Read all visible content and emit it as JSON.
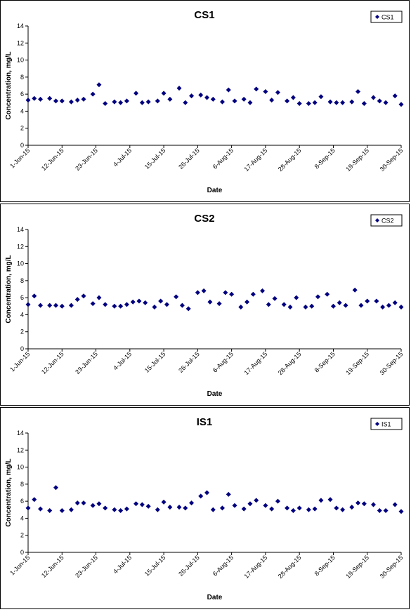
{
  "chart_data": [
    {
      "type": "scatter",
      "title": "CS1",
      "xlabel": "Date",
      "ylabel": "Concentration, mg/L",
      "ylim": [
        0,
        14
      ],
      "yticks": [
        0,
        2,
        4,
        6,
        8,
        10,
        12,
        14
      ],
      "xlim": [
        "2015-06-01",
        "2015-09-30"
      ],
      "xticks": [
        "1-Jun-15",
        "12-Jun-15",
        "23-Jun-15",
        "4-Jul-15",
        "15-Jul-15",
        "26-Jul-15",
        "6-Aug-15",
        "17-Aug-15",
        "28-Aug-15",
        "8-Sep-15",
        "19-Sep-15",
        "30-Sep-15"
      ],
      "grid": false,
      "legend": "top-right",
      "color": "#00007f",
      "series": [
        {
          "name": "CS1",
          "x": [
            "2015-06-01",
            "2015-06-03",
            "2015-06-05",
            "2015-06-08",
            "2015-06-10",
            "2015-06-12",
            "2015-06-15",
            "2015-06-17",
            "2015-06-19",
            "2015-06-22",
            "2015-06-24",
            "2015-06-26",
            "2015-06-29",
            "2015-07-01",
            "2015-07-03",
            "2015-07-06",
            "2015-07-08",
            "2015-07-10",
            "2015-07-13",
            "2015-07-15",
            "2015-07-17",
            "2015-07-20",
            "2015-07-22",
            "2015-07-24",
            "2015-07-27",
            "2015-07-29",
            "2015-07-31",
            "2015-08-03",
            "2015-08-05",
            "2015-08-07",
            "2015-08-10",
            "2015-08-12",
            "2015-08-14",
            "2015-08-17",
            "2015-08-19",
            "2015-08-21",
            "2015-08-24",
            "2015-08-26",
            "2015-08-28",
            "2015-08-31",
            "2015-09-02",
            "2015-09-04",
            "2015-09-07",
            "2015-09-09",
            "2015-09-11",
            "2015-09-14",
            "2015-09-16",
            "2015-09-18",
            "2015-09-21",
            "2015-09-23",
            "2015-09-25",
            "2015-09-28",
            "2015-09-30"
          ],
          "y": [
            5.3,
            5.5,
            5.4,
            5.5,
            5.2,
            5.2,
            5.1,
            5.3,
            5.4,
            6.0,
            7.1,
            4.9,
            5.1,
            5.0,
            5.2,
            6.1,
            5.0,
            5.1,
            5.2,
            6.1,
            5.4,
            6.7,
            5.0,
            5.8,
            5.9,
            5.6,
            5.4,
            5.1,
            6.5,
            5.2,
            5.4,
            5.0,
            6.6,
            6.3,
            5.3,
            6.2,
            5.2,
            5.6,
            4.9,
            4.9,
            5.0,
            5.7,
            5.1,
            5.0,
            5.0,
            5.1,
            6.3,
            4.9,
            5.6,
            5.2,
            5.0,
            5.8,
            4.8
          ]
        }
      ]
    },
    {
      "type": "scatter",
      "title": "CS2",
      "xlabel": "Date",
      "ylabel": "Concentration, mg/L",
      "ylim": [
        0,
        14
      ],
      "yticks": [
        0,
        2,
        4,
        6,
        8,
        10,
        12,
        14
      ],
      "xlim": [
        "2015-06-01",
        "2015-09-30"
      ],
      "xticks": [
        "1-Jun-15",
        "12-Jun-15",
        "23-Jun-15",
        "4-Jul-15",
        "15-Jul-15",
        "26-Jul-15",
        "6-Aug-15",
        "17-Aug-15",
        "28-Aug-15",
        "8-Sep-15",
        "19-Sep-15",
        "30-Sep-15"
      ],
      "grid": false,
      "legend": "top-right",
      "color": "#00007f",
      "series": [
        {
          "name": "CS2",
          "x": [
            "2015-06-01",
            "2015-06-03",
            "2015-06-05",
            "2015-06-08",
            "2015-06-10",
            "2015-06-12",
            "2015-06-15",
            "2015-06-17",
            "2015-06-19",
            "2015-06-22",
            "2015-06-24",
            "2015-06-26",
            "2015-06-29",
            "2015-07-01",
            "2015-07-03",
            "2015-07-05",
            "2015-07-07",
            "2015-07-09",
            "2015-07-12",
            "2015-07-14",
            "2015-07-16",
            "2015-07-19",
            "2015-07-21",
            "2015-07-23",
            "2015-07-26",
            "2015-07-28",
            "2015-07-30",
            "2015-08-02",
            "2015-08-04",
            "2015-08-06",
            "2015-08-09",
            "2015-08-11",
            "2015-08-13",
            "2015-08-16",
            "2015-08-18",
            "2015-08-20",
            "2015-08-23",
            "2015-08-25",
            "2015-08-27",
            "2015-08-30",
            "2015-09-01",
            "2015-09-03",
            "2015-09-06",
            "2015-09-08",
            "2015-09-10",
            "2015-09-12",
            "2015-09-15",
            "2015-09-17",
            "2015-09-19",
            "2015-09-22",
            "2015-09-24",
            "2015-09-26",
            "2015-09-28",
            "2015-09-30"
          ],
          "y": [
            5.2,
            6.2,
            5.1,
            5.1,
            5.1,
            5.0,
            5.1,
            5.8,
            6.2,
            5.3,
            6.0,
            5.2,
            5.0,
            5.0,
            5.2,
            5.5,
            5.6,
            5.4,
            4.9,
            5.6,
            5.2,
            6.1,
            5.1,
            4.7,
            6.6,
            6.8,
            5.5,
            5.3,
            6.6,
            6.4,
            4.9,
            5.5,
            6.4,
            6.8,
            5.2,
            5.9,
            5.2,
            4.9,
            6.0,
            4.9,
            5.0,
            6.1,
            6.4,
            5.0,
            5.4,
            5.1,
            6.9,
            5.1,
            5.6,
            5.6,
            4.9,
            5.1,
            5.4,
            4.9
          ]
        }
      ]
    },
    {
      "type": "scatter",
      "title": "IS1",
      "xlabel": "Date",
      "ylabel": "Concentration, mg/L",
      "ylim": [
        0,
        14
      ],
      "yticks": [
        0,
        2,
        4,
        6,
        8,
        10,
        12,
        14
      ],
      "xlim": [
        "2015-06-01",
        "2015-09-30"
      ],
      "xticks": [
        "1-Jun-15",
        "12-Jun-15",
        "23-Jun-15",
        "4-Jul-15",
        "15-Jul-15",
        "26-Jul-15",
        "6-Aug-15",
        "17-Aug-15",
        "28-Aug-15",
        "8-Sep-15",
        "19-Sep-15",
        "30-Sep-15"
      ],
      "grid": false,
      "legend": "top-right",
      "color": "#00007f",
      "series": [
        {
          "name": "IS1",
          "x": [
            "2015-06-01",
            "2015-06-03",
            "2015-06-05",
            "2015-06-08",
            "2015-06-10",
            "2015-06-12",
            "2015-06-15",
            "2015-06-17",
            "2015-06-19",
            "2015-06-22",
            "2015-06-24",
            "2015-06-26",
            "2015-06-29",
            "2015-07-01",
            "2015-07-03",
            "2015-07-06",
            "2015-07-08",
            "2015-07-10",
            "2015-07-13",
            "2015-07-15",
            "2015-07-17",
            "2015-07-20",
            "2015-07-22",
            "2015-07-24",
            "2015-07-27",
            "2015-07-29",
            "2015-07-31",
            "2015-08-03",
            "2015-08-05",
            "2015-08-07",
            "2015-08-10",
            "2015-08-12",
            "2015-08-14",
            "2015-08-17",
            "2015-08-19",
            "2015-08-21",
            "2015-08-24",
            "2015-08-26",
            "2015-08-28",
            "2015-08-31",
            "2015-09-02",
            "2015-09-04",
            "2015-09-07",
            "2015-09-09",
            "2015-09-11",
            "2015-09-14",
            "2015-09-16",
            "2015-09-18",
            "2015-09-21",
            "2015-09-23",
            "2015-09-25",
            "2015-09-28",
            "2015-09-30"
          ],
          "y": [
            5.2,
            6.2,
            5.1,
            4.9,
            7.6,
            4.9,
            5.0,
            5.8,
            5.8,
            5.5,
            5.7,
            5.2,
            5.0,
            4.9,
            5.1,
            5.7,
            5.6,
            5.4,
            5.0,
            5.9,
            5.3,
            5.3,
            5.2,
            5.8,
            6.6,
            7.0,
            5.0,
            5.2,
            6.8,
            5.5,
            5.1,
            5.7,
            6.1,
            5.5,
            5.1,
            6.0,
            5.2,
            4.9,
            5.2,
            5.0,
            5.1,
            6.1,
            6.2,
            5.2,
            5.0,
            5.3,
            5.8,
            5.7,
            5.6,
            4.9,
            4.9,
            5.6,
            4.8
          ]
        }
      ]
    }
  ]
}
